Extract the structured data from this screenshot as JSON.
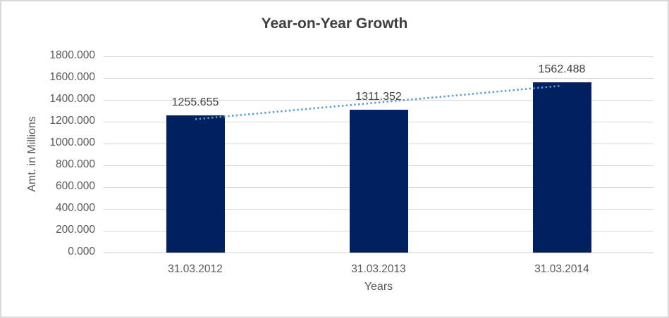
{
  "chart_data": {
    "type": "bar",
    "title": "Year-on-Year Growth",
    "xlabel": "Years",
    "ylabel": "Amt. in Millions",
    "categories": [
      "31.03.2012",
      "31.03.2013",
      "31.03.2014"
    ],
    "values": [
      1255.655,
      1311.352,
      1562.488
    ],
    "data_labels": [
      "1255.655",
      "1311.352",
      "1562.488"
    ],
    "ylim": [
      0,
      1800
    ],
    "ytick_step": 200,
    "ytick_labels": [
      "0.000",
      "200.000",
      "400.000",
      "600.000",
      "800.000",
      "1000.000",
      "1200.000",
      "1400.000",
      "1600.000",
      "1800.000"
    ],
    "grid": true,
    "legend": "none",
    "trendline": {
      "style": "dotted",
      "color": "#5b9bd5",
      "start_value": 1223.1,
      "end_value": 1529.9
    },
    "colors": {
      "bar": "#002060",
      "gridline": "#d9d9d9",
      "axis_line": "#cfcfcf",
      "title_text": "#3f3f3f",
      "axis_text": "#595959",
      "label_text": "#404040",
      "frame_border": "#d9d9d9",
      "background": "#ffffff"
    }
  }
}
